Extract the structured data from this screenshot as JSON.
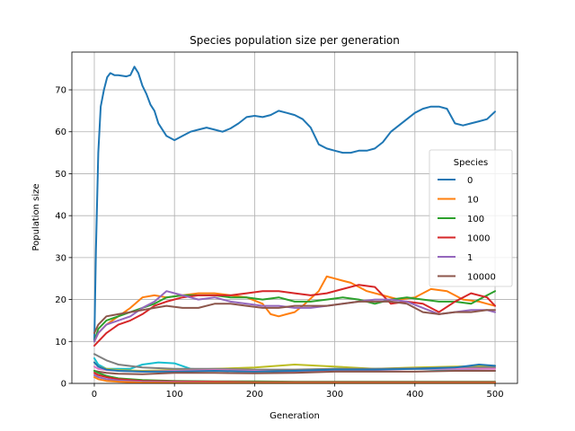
{
  "chart_data": {
    "type": "line",
    "title": "Species population size per generation",
    "xlabel": "Generation",
    "ylabel": "Population size",
    "xlim": [
      -28,
      528
    ],
    "ylim": [
      0,
      79
    ],
    "xticks": [
      0,
      100,
      200,
      300,
      400,
      500
    ],
    "yticks": [
      0,
      10,
      20,
      30,
      40,
      50,
      60,
      70
    ],
    "grid": true,
    "legend": {
      "title": "Species",
      "placement": "center-right"
    },
    "series": [
      {
        "name": "0",
        "color": "#1f77b4",
        "legend": true,
        "x": [
          0,
          2,
          5,
          8,
          12,
          16,
          20,
          25,
          30,
          40,
          45,
          50,
          55,
          60,
          65,
          70,
          75,
          80,
          90,
          100,
          110,
          120,
          130,
          140,
          150,
          160,
          170,
          180,
          190,
          200,
          210,
          220,
          230,
          240,
          250,
          260,
          270,
          280,
          290,
          300,
          310,
          320,
          330,
          340,
          350,
          360,
          370,
          380,
          390,
          400,
          410,
          420,
          430,
          440,
          450,
          460,
          470,
          480,
          490,
          500
        ],
        "y": [
          10,
          32,
          55,
          66,
          70,
          73,
          74,
          73.5,
          73.5,
          73.2,
          73.5,
          75.5,
          74,
          71,
          69,
          66.5,
          65,
          62,
          59,
          58,
          59,
          60,
          60.5,
          61,
          60.5,
          60,
          60.8,
          62,
          63.5,
          63.8,
          63.5,
          64,
          65,
          64.5,
          64,
          63,
          61,
          57,
          56,
          55.5,
          55,
          55,
          55.5,
          55.5,
          56,
          57.5,
          60,
          61.5,
          63,
          64.5,
          65.5,
          66,
          66,
          65.5,
          62,
          61.5,
          62,
          62.5,
          63,
          64.8
        ]
      },
      {
        "name": "10",
        "color": "#ff7f0e",
        "legend": true,
        "x": [
          0,
          5,
          15,
          30,
          45,
          60,
          75,
          90,
          110,
          130,
          150,
          170,
          190,
          210,
          220,
          230,
          240,
          250,
          260,
          280,
          290,
          300,
          310,
          320,
          340,
          360,
          380,
          400,
          420,
          440,
          460,
          480,
          490,
          500
        ],
        "y": [
          10,
          12,
          14,
          16,
          18,
          20.5,
          21,
          20.5,
          21,
          21.5,
          21.5,
          21,
          20.5,
          19,
          16.5,
          16,
          16.5,
          17,
          18.5,
          22,
          25.5,
          25,
          24.5,
          24,
          22,
          21,
          20,
          20.5,
          22.5,
          22,
          20,
          19.5,
          19,
          18.5
        ]
      },
      {
        "name": "100",
        "color": "#2ca02c",
        "legend": true,
        "x": [
          0,
          5,
          15,
          30,
          45,
          60,
          75,
          90,
          110,
          130,
          150,
          170,
          190,
          210,
          230,
          250,
          270,
          290,
          310,
          330,
          350,
          370,
          390,
          410,
          430,
          450,
          470,
          490,
          500
        ],
        "y": [
          10,
          13,
          15,
          16,
          17,
          18,
          19,
          20.5,
          21,
          21,
          21,
          20.5,
          20.5,
          20,
          20.5,
          19.5,
          19.5,
          20,
          20.5,
          20,
          19,
          20,
          20.5,
          20,
          19.5,
          19.5,
          19,
          21,
          22
        ]
      },
      {
        "name": "1000",
        "color": "#d62728",
        "legend": true,
        "x": [
          0,
          5,
          15,
          30,
          45,
          60,
          75,
          90,
          110,
          130,
          150,
          170,
          190,
          210,
          230,
          250,
          270,
          290,
          310,
          330,
          350,
          370,
          390,
          410,
          430,
          450,
          470,
          490,
          500
        ],
        "y": [
          9,
          10,
          12,
          14,
          15,
          16.5,
          18.5,
          19.5,
          20.5,
          21,
          21,
          21,
          21.5,
          22,
          22,
          21.5,
          21,
          21.5,
          22.5,
          23.5,
          23,
          19,
          19.5,
          19,
          17,
          19.5,
          21.5,
          20.5,
          18.5
        ]
      },
      {
        "name": "1",
        "color": "#9467bd",
        "legend": true,
        "x": [
          0,
          5,
          15,
          30,
          45,
          60,
          75,
          90,
          110,
          130,
          150,
          170,
          190,
          210,
          230,
          250,
          270,
          290,
          310,
          330,
          350,
          370,
          390,
          410,
          430,
          450,
          470,
          490,
          500
        ],
        "y": [
          10,
          12,
          14,
          15,
          16,
          18,
          19.5,
          22,
          21,
          20,
          20.5,
          19.5,
          19,
          18.5,
          18.5,
          18,
          18,
          18.5,
          19,
          19.5,
          20,
          20,
          19.5,
          18,
          16.5,
          17,
          17.5,
          17.5,
          17
        ]
      },
      {
        "name": "10000",
        "color": "#8c564b",
        "legend": true,
        "x": [
          0,
          5,
          15,
          30,
          45,
          60,
          75,
          90,
          110,
          130,
          150,
          170,
          190,
          210,
          230,
          250,
          270,
          290,
          310,
          330,
          350,
          370,
          390,
          410,
          430,
          450,
          470,
          490,
          500
        ],
        "y": [
          12,
          14,
          16,
          16.5,
          17,
          17.5,
          18,
          18.5,
          18,
          18,
          19,
          19,
          18.5,
          18,
          18,
          18.5,
          18.5,
          18.5,
          19,
          19.5,
          19.5,
          19.5,
          19,
          17,
          16.5,
          17,
          17,
          17.5,
          17.5
        ]
      },
      {
        "name": "",
        "color": "#17becf",
        "legend": false,
        "x": [
          0,
          5,
          15,
          30,
          45,
          60,
          80,
          100,
          120,
          150,
          200,
          250,
          300,
          350,
          400,
          450,
          500
        ],
        "y": [
          6,
          4.5,
          3.5,
          3.5,
          3.5,
          4.5,
          5,
          4.8,
          3.5,
          3.2,
          3,
          3.2,
          3.5,
          3.5,
          3.5,
          3.2,
          3
        ]
      },
      {
        "name": "",
        "color": "#bcbd22",
        "legend": true,
        "x": [
          0,
          5,
          15,
          30,
          60,
          100,
          150,
          200,
          250,
          300,
          350,
          400,
          450,
          500
        ],
        "y": [
          5,
          4,
          3.5,
          3.2,
          3,
          3.2,
          3.5,
          3.8,
          4.5,
          4,
          3.5,
          3.8,
          4,
          4.2
        ]
      },
      {
        "name": "",
        "color": "#7f7f7f",
        "legend": false,
        "x": [
          0,
          5,
          15,
          30,
          60,
          100,
          150,
          200,
          250,
          300,
          350,
          400,
          450,
          500
        ],
        "y": [
          7,
          6.5,
          5.5,
          4.5,
          3.8,
          3.5,
          3.5,
          3.3,
          3.3,
          3.5,
          3.5,
          3.6,
          3.8,
          3.8
        ]
      },
      {
        "name": "",
        "color": "#e377c2",
        "legend": false,
        "x": [
          0,
          5,
          15,
          30,
          60,
          100,
          150,
          200,
          250,
          300,
          350,
          400,
          450,
          500
        ],
        "y": [
          4,
          3.5,
          3.2,
          3,
          2.8,
          3,
          3.2,
          3,
          2.8,
          3,
          3.2,
          3.5,
          3.5,
          3.5
        ]
      },
      {
        "name": "",
        "color": "#1f77b4",
        "legend": false,
        "x": [
          0,
          5,
          15,
          30,
          60,
          100,
          150,
          200,
          250,
          300,
          350,
          400,
          450,
          480,
          500
        ],
        "y": [
          5,
          4,
          3.3,
          3,
          2.8,
          2.8,
          3,
          2.8,
          3,
          3.3,
          3.3,
          3.5,
          3.8,
          4.5,
          4.2
        ]
      },
      {
        "name": "",
        "color": "#8c564b",
        "legend": false,
        "x": [
          0,
          5,
          15,
          30,
          60,
          100,
          150,
          200,
          250,
          300,
          350,
          400,
          450,
          500
        ],
        "y": [
          3,
          2.8,
          2.5,
          2.3,
          2.2,
          2.5,
          2.5,
          2.4,
          2.5,
          2.8,
          2.8,
          2.8,
          3,
          3
        ]
      },
      {
        "name": "",
        "color": "#2ca02c",
        "legend": false,
        "x": [
          0,
          5,
          15,
          30,
          60,
          100,
          150,
          200,
          250,
          300,
          350,
          400,
          450,
          500
        ],
        "y": [
          3,
          2.5,
          1.8,
          1.2,
          0.8,
          0.6,
          0.5,
          0.5,
          0.4,
          0.4,
          0.4,
          0.4,
          0.4,
          0.4
        ]
      },
      {
        "name": "",
        "color": "#d62728",
        "legend": false,
        "x": [
          0,
          5,
          15,
          30,
          60,
          100,
          150,
          200,
          250,
          300,
          350,
          400,
          450,
          500
        ],
        "y": [
          2.5,
          2,
          1.5,
          1,
          0.6,
          0.5,
          0.4,
          0.3,
          0.3,
          0.3,
          0.3,
          0.3,
          0.3,
          0.3
        ]
      },
      {
        "name": "",
        "color": "#9467bd",
        "legend": false,
        "x": [
          0,
          5,
          15,
          30,
          60,
          100,
          150,
          200,
          250,
          300,
          350,
          400,
          450,
          500
        ],
        "y": [
          2,
          1.5,
          1,
          0.7,
          0.4,
          0.3,
          0.2,
          0.2,
          0.2,
          0.2,
          0.2,
          0.2,
          0.2,
          0.2
        ]
      },
      {
        "name": "",
        "color": "#ff7f0e",
        "legend": false,
        "x": [
          0,
          5,
          15,
          30,
          60,
          100,
          150,
          200,
          250,
          300,
          350,
          400,
          450,
          500
        ],
        "y": [
          1.5,
          1,
          0.6,
          0.4,
          0.2,
          0.1,
          0.1,
          0.1,
          0.1,
          0.1,
          0.1,
          0.1,
          0.1,
          0.1
        ]
      }
    ]
  }
}
